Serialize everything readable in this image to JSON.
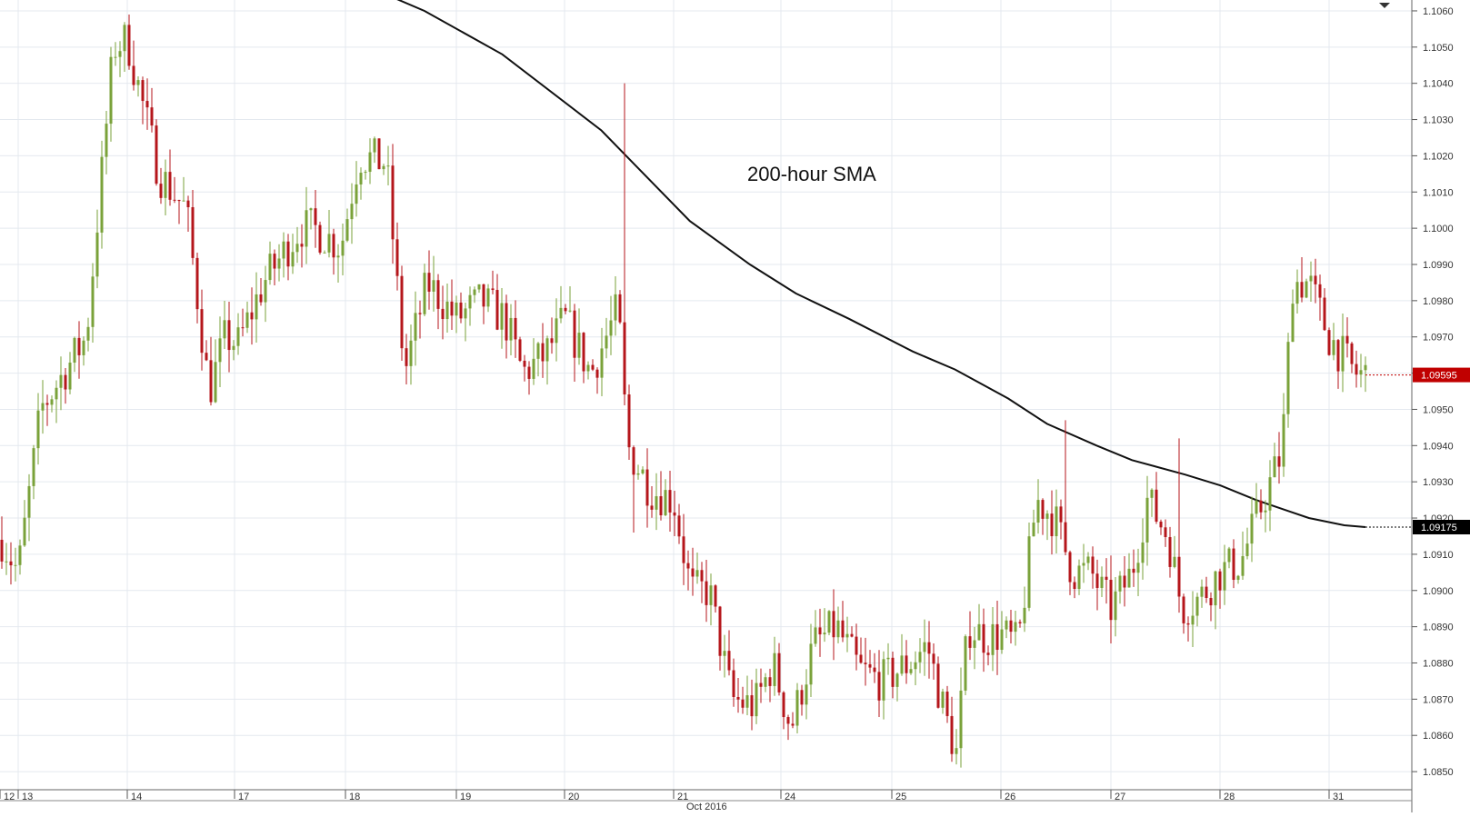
{
  "chart_data": {
    "type": "candlestick",
    "instrument_note": "",
    "annotation": "200-hour SMA",
    "month_label": "Oct 2016",
    "x_day_labels": [
      "12",
      "13",
      "14",
      "17",
      "18",
      "19",
      "20",
      "21",
      "24",
      "25",
      "26",
      "27",
      "28",
      "31"
    ],
    "y_axis": {
      "min": 1.0845,
      "max": 1.1063,
      "tick_labels": [
        "1.0850",
        "1.0860",
        "1.0870",
        "1.0880",
        "1.0890",
        "1.0900",
        "1.0910",
        "1.0920",
        "1.0930",
        "1.0940",
        "1.0950",
        "1.0960",
        "1.0970",
        "1.0980",
        "1.0990",
        "1.1000",
        "1.1010",
        "1.1020",
        "1.1030",
        "1.1040",
        "1.1050",
        "1.1060"
      ]
    },
    "grid": true,
    "price_tags": [
      {
        "label": "1.09595",
        "value": 1.09595,
        "color": "#c00000"
      },
      {
        "label": "1.09175",
        "value": 1.09175,
        "color": "#000000"
      }
    ],
    "colors": {
      "up": "#7aa23a",
      "down": "#b5161b",
      "sma": "#111111",
      "grid": "#e4e9ef",
      "axis_text": "#333333"
    },
    "sma_200h": {
      "label": "200-hour SMA",
      "points": [
        [
          108,
          1.1065
        ],
        [
          120,
          1.106
        ],
        [
          142,
          1.1048
        ],
        [
          170,
          1.1027
        ],
        [
          180,
          1.1017
        ],
        [
          195,
          1.1002
        ],
        [
          212,
          1.099
        ],
        [
          225,
          1.0982
        ],
        [
          240,
          1.0975
        ],
        [
          258,
          1.0966
        ],
        [
          270,
          1.0961
        ],
        [
          285,
          1.0953
        ],
        [
          296,
          1.0946
        ],
        [
          310,
          1.094
        ],
        [
          320,
          1.0936
        ],
        [
          335,
          1.0932
        ],
        [
          345,
          1.0929
        ],
        [
          355,
          1.0925
        ],
        [
          364,
          1.0922
        ],
        [
          370,
          1.092
        ],
        [
          380,
          1.0918
        ],
        [
          386,
          1.09175
        ]
      ]
    },
    "candles": []
  }
}
